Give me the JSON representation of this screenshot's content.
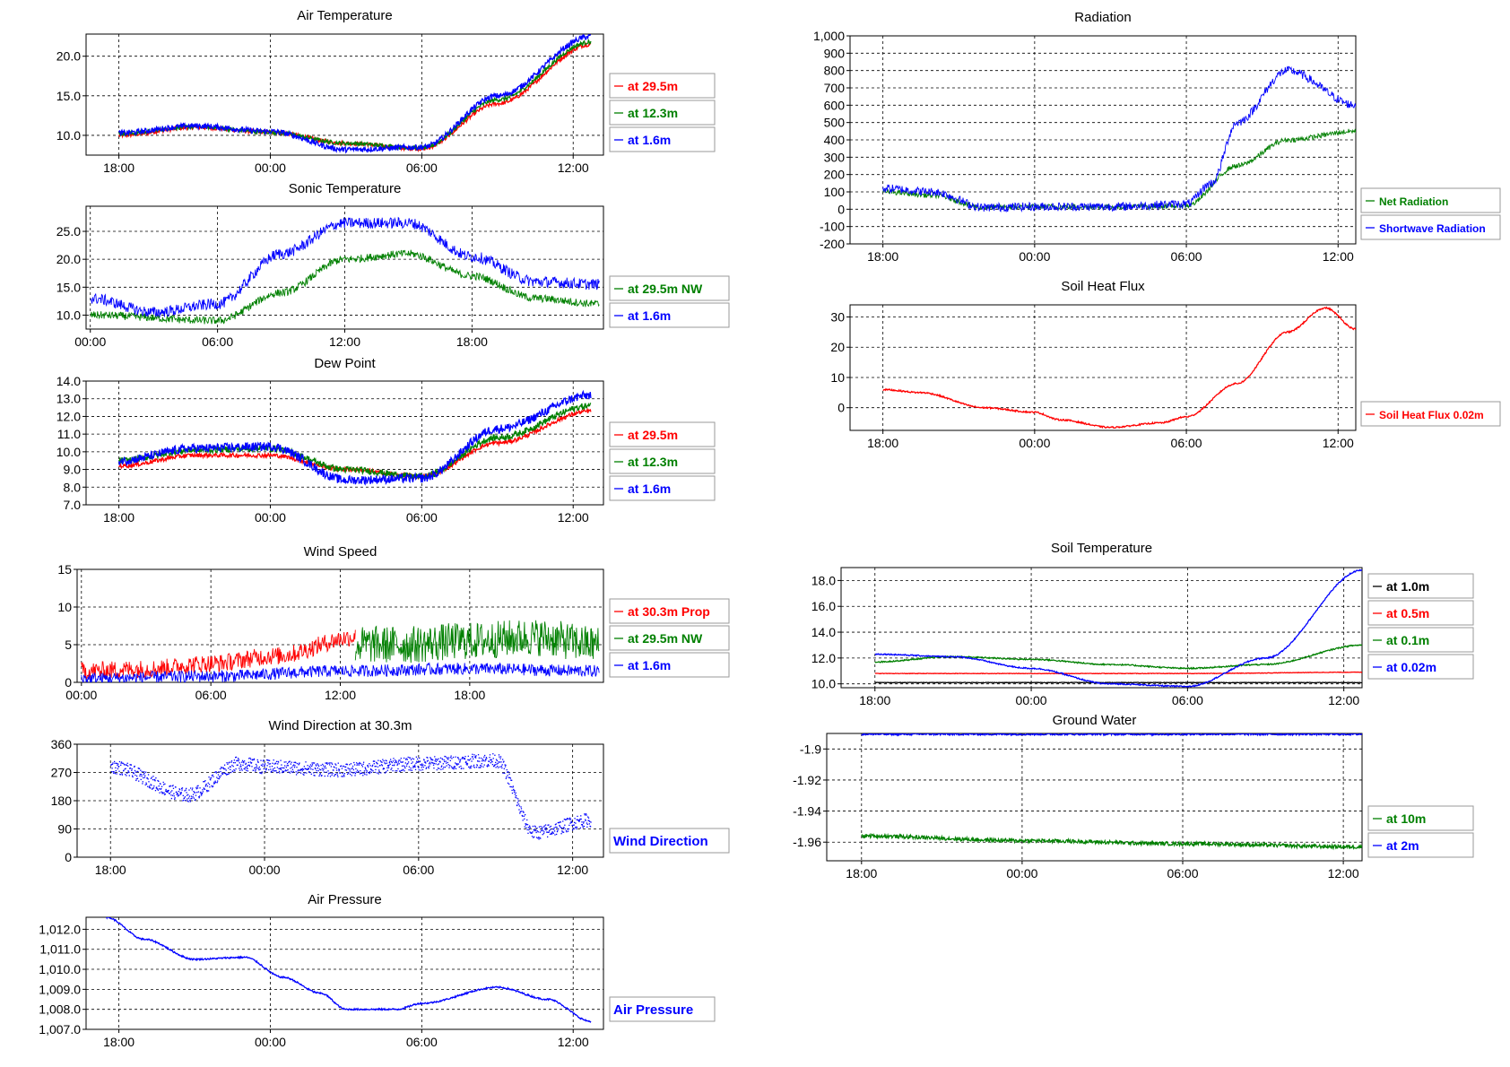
{
  "chart_data": [
    {
      "type": "line",
      "title": "Air Temperature",
      "x_ticks": [
        "18:00",
        "00:00",
        "06:00",
        "12:00"
      ],
      "y_ticks": [
        "10.0",
        "15.0",
        "20.0"
      ],
      "ylim": [
        7.5,
        22.8
      ],
      "grid": true,
      "legend": "right",
      "series": [
        {
          "name": "at 29.5m",
          "color": "#ff0000",
          "x_hours": [
            -6,
            -3,
            0,
            3,
            6,
            9,
            12.7
          ],
          "values": [
            10,
            11,
            10.4,
            9,
            8.3,
            14,
            21.5
          ]
        },
        {
          "name": "at 12.3m",
          "color": "#008000",
          "x_hours": [
            -6,
            -3,
            0,
            3,
            6,
            9,
            12.7
          ],
          "values": [
            10.2,
            11.1,
            10.4,
            9,
            8.4,
            14.5,
            21.8
          ]
        },
        {
          "name": "at 1.6m",
          "color": "#0000ff",
          "x_hours": [
            -6,
            -3,
            0,
            3,
            6,
            9,
            12.7
          ],
          "values": [
            10.3,
            11.2,
            10.5,
            8.2,
            8.5,
            15,
            22.5
          ]
        }
      ]
    },
    {
      "type": "line",
      "title": "Sonic Temperature",
      "x_ticks": [
        "00:00",
        "06:00",
        "12:00",
        "18:00"
      ],
      "y_ticks": [
        "10.0",
        "15.0",
        "20.0",
        "25.0"
      ],
      "ylim": [
        7.5,
        29.5
      ],
      "grid": true,
      "legend": "right",
      "series": [
        {
          "name": "at 29.5m NW",
          "color": "#008000",
          "x_hours": [
            0,
            6,
            9,
            12,
            15,
            18,
            21,
            24
          ],
          "values": [
            10,
            9,
            14,
            20,
            21,
            17,
            13,
            12
          ]
        },
        {
          "name": "at 1.6m",
          "color": "#0000ff",
          "x_hours": [
            0,
            3,
            6,
            9,
            12,
            15,
            18,
            21,
            24
          ],
          "values": [
            13,
            10.5,
            12,
            21,
            26.5,
            26.5,
            20.5,
            16,
            15.5
          ]
        }
      ]
    },
    {
      "type": "line",
      "title": "Dew Point",
      "x_ticks": [
        "18:00",
        "00:00",
        "06:00",
        "12:00"
      ],
      "y_ticks": [
        "7.0",
        "8.0",
        "9.0",
        "10.0",
        "11.0",
        "12.0",
        "13.0",
        "14.0"
      ],
      "ylim": [
        7,
        14
      ],
      "grid": true,
      "legend": "right",
      "series": [
        {
          "name": "at 29.5m",
          "color": "#ff0000",
          "x_hours": [
            -6,
            -3,
            0,
            3,
            6,
            9,
            12.7
          ],
          "values": [
            9.2,
            9.8,
            9.8,
            9.0,
            8.6,
            10.5,
            12.3
          ]
        },
        {
          "name": "at 12.3m",
          "color": "#008000",
          "x_hours": [
            -6,
            -3,
            0,
            3,
            6,
            9,
            12.7
          ],
          "values": [
            9.5,
            10.1,
            10.2,
            9.0,
            8.6,
            10.8,
            12.6
          ]
        },
        {
          "name": "at 1.6m",
          "color": "#0000ff",
          "x_hours": [
            -6,
            -3,
            0,
            3,
            6,
            9,
            12.7
          ],
          "values": [
            9.5,
            10.2,
            10.3,
            8.4,
            8.5,
            11.3,
            13.2
          ]
        }
      ]
    },
    {
      "type": "line",
      "title": "Wind Speed",
      "x_ticks": [
        "00:00",
        "06:00",
        "12:00",
        "18:00"
      ],
      "y_ticks": [
        "0",
        "5",
        "10",
        "15"
      ],
      "ylim": [
        0,
        15
      ],
      "grid": true,
      "legend": "right",
      "series": [
        {
          "name": "at 30.3m Prop",
          "color": "#ff0000",
          "x_hours": [
            0,
            3,
            6,
            9,
            12.7
          ],
          "values": [
            1.5,
            1.8,
            2.5,
            3.5,
            6
          ]
        },
        {
          "name": "at 29.5m NW",
          "color": "#008000",
          "x_hours": [
            12.7,
            15,
            18,
            21,
            24
          ],
          "values": [
            5,
            5,
            5.5,
            6,
            5
          ]
        },
        {
          "name": "at 1.6m",
          "color": "#0000ff",
          "x_hours": [
            0,
            6,
            12,
            18,
            24
          ],
          "values": [
            0.5,
            0.8,
            1.5,
            1.8,
            1.5
          ]
        }
      ]
    },
    {
      "type": "scatter",
      "title": "Wind Direction at 30.3m",
      "x_ticks": [
        "18:00",
        "00:00",
        "06:00",
        "12:00"
      ],
      "y_ticks": [
        "0",
        "90",
        "180",
        "270",
        "360"
      ],
      "ylim": [
        0,
        360
      ],
      "grid": true,
      "legend": "right",
      "series": [
        {
          "name": "Wind Direction",
          "color": "#0000ff",
          "x_hours": [
            -6,
            -3,
            -1,
            0,
            3,
            6,
            9,
            10.5,
            12.7
          ],
          "values": [
            290,
            200,
            300,
            290,
            280,
            300,
            310,
            80,
            120
          ]
        }
      ]
    },
    {
      "type": "line",
      "title": "Air Pressure",
      "x_ticks": [
        "18:00",
        "00:00",
        "06:00",
        "12:00"
      ],
      "y_ticks": [
        "1,007.0",
        "1,008.0",
        "1,009.0",
        "1,010.0",
        "1,011.0",
        "1,012.0"
      ],
      "ylim": [
        1007,
        1012.6
      ],
      "grid": true,
      "legend": "right",
      "series": [
        {
          "name": "Air Pressure",
          "color": "#0000ff",
          "x_hours": [
            -6.5,
            -5,
            -3,
            -1,
            0.5,
            2,
            3,
            5,
            6,
            9,
            11,
            12.7
          ],
          "values": [
            1012.6,
            1011.5,
            1010.5,
            1010.6,
            1009.6,
            1008.8,
            1008.0,
            1008.0,
            1008.3,
            1009.1,
            1008.5,
            1007.4
          ]
        }
      ]
    },
    {
      "type": "line",
      "title": "Radiation",
      "x_ticks": [
        "18:00",
        "00:00",
        "06:00",
        "12:00"
      ],
      "y_ticks": [
        "-200",
        "-100",
        "0",
        "100",
        "200",
        "300",
        "400",
        "500",
        "600",
        "700",
        "800",
        "900",
        "1,000"
      ],
      "ylim": [
        -200,
        1000
      ],
      "grid": true,
      "legend": "right",
      "series": [
        {
          "name": "Net Radiation",
          "color": "#008000",
          "x_hours": [
            -6,
            -4,
            -2,
            0,
            3,
            6,
            8,
            10,
            12.7
          ],
          "values": [
            100,
            80,
            10,
            15,
            15,
            20,
            250,
            400,
            450
          ]
        },
        {
          "name": "Shortwave Radiation",
          "color": "#0000ff",
          "x_hours": [
            -6,
            -4,
            -2,
            0,
            3,
            6,
            7,
            8,
            10,
            12.7
          ],
          "values": [
            120,
            100,
            10,
            15,
            15,
            30,
            150,
            500,
            800,
            600
          ]
        }
      ]
    },
    {
      "type": "line",
      "title": "Soil Heat Flux",
      "x_ticks": [
        "18:00",
        "00:00",
        "06:00",
        "12:00"
      ],
      "y_ticks": [
        "0",
        "10",
        "20",
        "30"
      ],
      "ylim": [
        -7.5,
        34
      ],
      "grid": true,
      "legend": "right",
      "series": [
        {
          "name": "Soil Heat Flux 0.02m",
          "color": "#ff0000",
          "x_hours": [
            -6,
            -4.5,
            -2,
            0,
            1,
            3,
            5,
            6,
            8,
            10,
            11.5,
            12.7
          ],
          "values": [
            6,
            5,
            0,
            -1.5,
            -4,
            -6.5,
            -5,
            -3,
            8,
            25,
            33,
            26
          ]
        }
      ]
    },
    {
      "type": "line",
      "title": "Soil Temperature",
      "x_ticks": [
        "18:00",
        "00:00",
        "06:00",
        "12:00"
      ],
      "y_ticks": [
        "10.0",
        "12.0",
        "14.0",
        "16.0",
        "18.0"
      ],
      "ylim": [
        9.7,
        19
      ],
      "grid": true,
      "legend": "right",
      "series": [
        {
          "name": "at 1.0m",
          "color": "#000000",
          "x_hours": [
            -6,
            0,
            6,
            12.7
          ],
          "values": [
            10.1,
            10.1,
            10.1,
            10.1
          ]
        },
        {
          "name": "at 0.5m",
          "color": "#ff0000",
          "x_hours": [
            -6,
            0,
            6,
            12.7
          ],
          "values": [
            10.8,
            10.8,
            10.8,
            10.9
          ]
        },
        {
          "name": "at 0.1m",
          "color": "#008000",
          "x_hours": [
            -6,
            -3,
            0,
            3,
            6,
            9,
            12.7
          ],
          "values": [
            11.7,
            12.1,
            11.9,
            11.5,
            11.2,
            11.5,
            13.0
          ]
        },
        {
          "name": "at 0.02m",
          "color": "#0000ff",
          "x_hours": [
            -6,
            -3,
            0,
            3,
            6,
            9,
            12.7
          ],
          "values": [
            12.3,
            12.1,
            11.2,
            10.0,
            9.8,
            12.0,
            18.8
          ]
        }
      ]
    },
    {
      "type": "line",
      "title": "Ground Water",
      "x_ticks": [
        "18:00",
        "00:00",
        "06:00",
        "12:00"
      ],
      "y_ticks": [
        "-1.9",
        "-1.92",
        "-1.94",
        "-1.96"
      ],
      "ylim": [
        -1.972,
        -1.89
      ],
      "grid": true,
      "legend": "right",
      "series": [
        {
          "name": "at 10m",
          "color": "#008000",
          "x_hours": [
            -6,
            0,
            6,
            12.7
          ],
          "values": [
            -1.956,
            -1.959,
            -1.961,
            -1.963
          ]
        },
        {
          "name": "at 2m",
          "color": "#0000ff",
          "x_hours": [
            -6,
            0,
            6,
            12.7
          ],
          "values": [
            -1.8905,
            -1.8905,
            -1.8905,
            -1.8905
          ]
        }
      ]
    }
  ]
}
